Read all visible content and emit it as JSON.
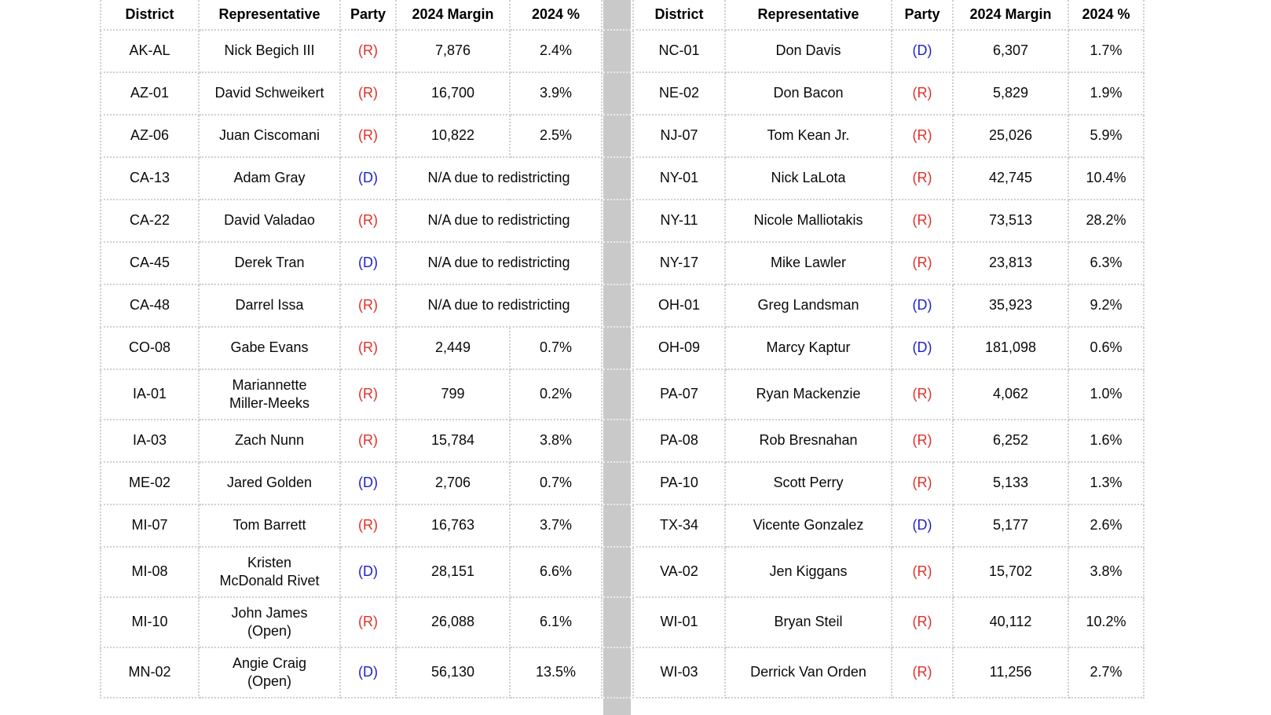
{
  "colors": {
    "republican": "#e0302a",
    "democrat": "#1f1fcd",
    "grid": "#cfcfcf",
    "divider_band": "#c9c9c9",
    "text": "#0a0a0a"
  },
  "na_text": "N/A due to redistricting",
  "chart_data": [
    {
      "type": "table",
      "columns": [
        "District",
        "Representative",
        "Party",
        "2024 Margin",
        "2024 %"
      ],
      "rows": [
        [
          "AK-AL",
          "Nick Begich III",
          "(R)",
          "7,876",
          "2.4%"
        ],
        [
          "AZ-01",
          "David Schweikert",
          "(R)",
          "16,700",
          "3.9%"
        ],
        [
          "AZ-06",
          "Juan Ciscomani",
          "(R)",
          "10,822",
          "2.5%"
        ],
        [
          "CA-13",
          "Adam Gray",
          "(D)",
          "N/A due to redistricting",
          ""
        ],
        [
          "CA-22",
          "David Valadao",
          "(R)",
          "N/A due to redistricting",
          ""
        ],
        [
          "CA-45",
          "Derek Tran",
          "(D)",
          "N/A due to redistricting",
          ""
        ],
        [
          "CA-48",
          "Darrel Issa",
          "(R)",
          "N/A due to redistricting",
          ""
        ],
        [
          "CO-08",
          "Gabe Evans",
          "(R)",
          "2,449",
          "0.7%"
        ],
        [
          "IA-01",
          "Mariannette\nMiller-Meeks",
          "(R)",
          "799",
          "0.2%"
        ],
        [
          "IA-03",
          "Zach Nunn",
          "(R)",
          "15,784",
          "3.8%"
        ],
        [
          "ME-02",
          "Jared Golden",
          "(D)",
          "2,706",
          "0.7%"
        ],
        [
          "MI-07",
          "Tom Barrett",
          "(R)",
          "16,763",
          "3.7%"
        ],
        [
          "MI-08",
          "Kristen\nMcDonald Rivet",
          "(D)",
          "28,151",
          "6.6%"
        ],
        [
          "MI-10",
          "John James\n(Open)",
          "(R)",
          "26,088",
          "6.1%"
        ],
        [
          "MN-02",
          "Angie Craig\n(Open)",
          "(D)",
          "56,130",
          "13.5%"
        ]
      ]
    },
    {
      "type": "table",
      "columns": [
        "District",
        "Representative",
        "Party",
        "2024 Margin",
        "2024 %"
      ],
      "rows": [
        [
          "NC-01",
          "Don Davis",
          "(D)",
          "6,307",
          "1.7%"
        ],
        [
          "NE-02",
          "Don Bacon",
          "(R)",
          "5,829",
          "1.9%"
        ],
        [
          "NJ-07",
          "Tom Kean Jr.",
          "(R)",
          "25,026",
          "5.9%"
        ],
        [
          "NY-01",
          "Nick LaLota",
          "(R)",
          "42,745",
          "10.4%"
        ],
        [
          "NY-11",
          "Nicole Malliotakis",
          "(R)",
          "73,513",
          "28.2%"
        ],
        [
          "NY-17",
          "Mike Lawler",
          "(R)",
          "23,813",
          "6.3%"
        ],
        [
          "OH-01",
          "Greg Landsman",
          "(D)",
          "35,923",
          "9.2%"
        ],
        [
          "OH-09",
          "Marcy Kaptur",
          "(D)",
          "181,098",
          "0.6%"
        ],
        [
          "PA-07",
          "Ryan Mackenzie",
          "(R)",
          "4,062",
          "1.0%"
        ],
        [
          "PA-08",
          "Rob Bresnahan",
          "(R)",
          "6,252",
          "1.6%"
        ],
        [
          "PA-10",
          "Scott Perry",
          "(R)",
          "5,133",
          "1.3%"
        ],
        [
          "TX-34",
          "Vicente Gonzalez",
          "(D)",
          "5,177",
          "2.6%"
        ],
        [
          "VA-02",
          "Jen Kiggans",
          "(R)",
          "15,702",
          "3.8%"
        ],
        [
          "WI-01",
          "Bryan Steil",
          "(R)",
          "40,112",
          "10.2%"
        ],
        [
          "WI-03",
          "Derrick Van Orden",
          "(R)",
          "11,256",
          "2.7%"
        ]
      ]
    }
  ]
}
